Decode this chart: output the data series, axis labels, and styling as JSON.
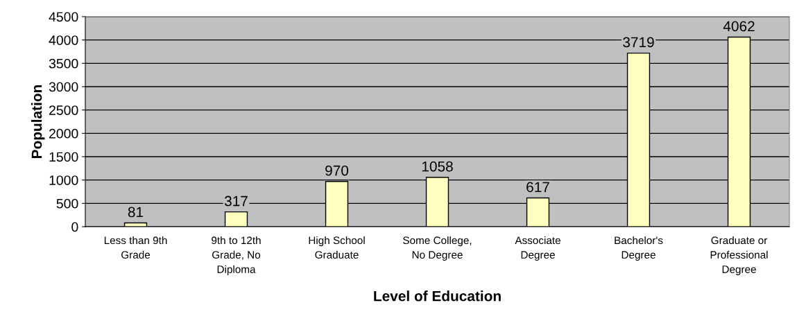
{
  "chart_data": {
    "type": "bar",
    "xlabel": "Level of Education",
    "ylabel": "Population",
    "categories": [
      "Less than 9th\nGrade",
      "9th to 12th\nGrade, No\nDiploma",
      "High School\nGraduate",
      "Some College,\nNo Degree",
      "Associate\nDegree",
      "Bachelor's\nDegree",
      "Graduate or\nProfessional\nDegree"
    ],
    "values": [
      81,
      317,
      970,
      1058,
      617,
      3719,
      4062
    ],
    "color": "#ffffc0",
    "ylim": [
      0,
      4500
    ],
    "yticks": [
      0,
      500,
      1000,
      1500,
      2000,
      2500,
      3000,
      3500,
      4000,
      4500
    ],
    "grid": "y",
    "data_labels": true,
    "legend": false
  }
}
